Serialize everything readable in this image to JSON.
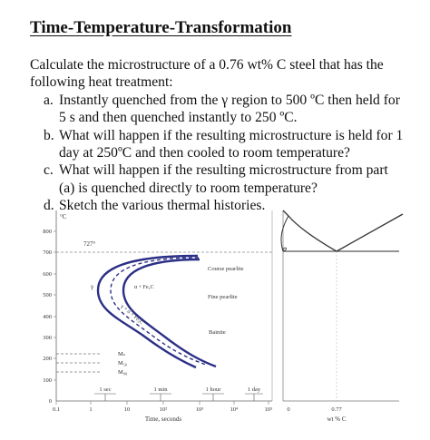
{
  "title": "Time-Temperature-Transformation",
  "intro": "Calculate the microstructure of a 0.76 wt% C steel that has the following heat treatment:",
  "parts": [
    {
      "mark": "a.",
      "text": "Instantly quenched from the γ region to 500 ºC then held for 5 s and then quenched instantly to 250 ºC."
    },
    {
      "mark": "b.",
      "text": "What will happen if the resulting microstructure is held for 1 day at 250ºC and then cooled to room temperature?"
    },
    {
      "mark": "c.",
      "text": "What will happen if the resulting microstructure from part (a) is quenched directly to room temperature?"
    },
    {
      "mark": "d.",
      "text": "Sketch the various thermal histories."
    }
  ],
  "ttt": {
    "y_unit": "°C",
    "y_ticks": [
      "800",
      "700",
      "600",
      "500",
      "400",
      "300",
      "200",
      "100",
      "0"
    ],
    "x_ticks": [
      "0.1",
      "1",
      "10",
      "10²",
      "10³",
      "10⁴",
      "10⁵"
    ],
    "x_label": "Time, seconds",
    "time_marks": [
      "1 sec",
      "1 min",
      "1 hour",
      "1 day"
    ],
    "labels": {
      "eutectoid": "727°",
      "gamma": "γ",
      "alpha_fe3c": "α + Fe₃C",
      "gamma_alpha": "γ + α + Fe₃C",
      "coarse": "Course pearlite",
      "fine": "Fine pearlite",
      "bainite": "Bainite",
      "ms": "Mₛ",
      "m50": "M₅₀",
      "m90": "M₉₀"
    }
  },
  "phase": {
    "x_ticks": [
      "0",
      "0.77"
    ],
    "x_label": "wt % C"
  }
}
